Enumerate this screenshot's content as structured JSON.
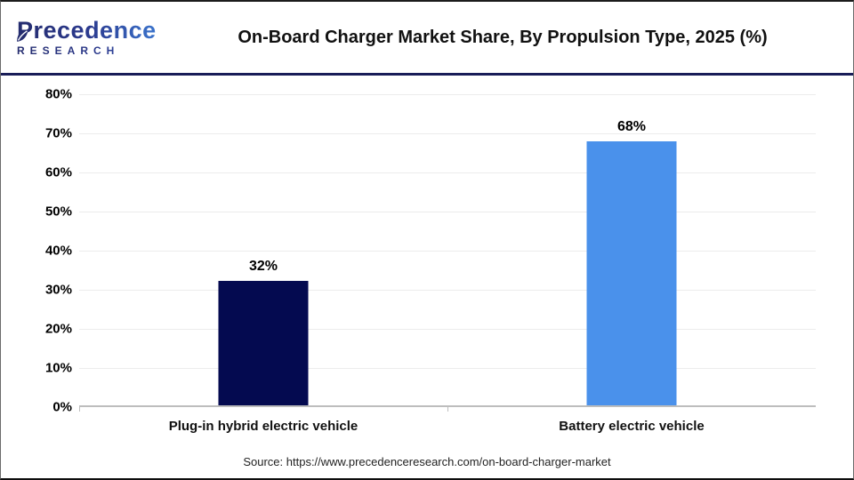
{
  "header": {
    "logo": {
      "name": "Precedence",
      "sub": "RESEARCH"
    },
    "title": "On-Board Charger Market Share, By Propulsion Type, 2025 (%)"
  },
  "chart_data": {
    "type": "bar",
    "title": "On-Board Charger Market Share, By Propulsion Type, 2025 (%)",
    "categories": [
      "Plug-in hybrid electric vehicle",
      "Battery electric vehicle"
    ],
    "values": [
      32,
      68
    ],
    "value_labels": [
      "32%",
      "68%"
    ],
    "bar_colors": [
      "#040a50",
      "#4a91eb"
    ],
    "xlabel": "",
    "ylabel": "",
    "ylim": [
      0,
      80
    ],
    "ytick_step": 10,
    "yticks": [
      "80%",
      "70%",
      "60%",
      "50%",
      "40%",
      "30%",
      "20%",
      "10%",
      "0%"
    ],
    "grid": true,
    "legend": false
  },
  "footer": {
    "source": "Source: https://www.precedenceresearch.com/on-board-charger-market"
  },
  "colors": {
    "navy_bar": "#040a50",
    "blue_bar": "#4a91eb",
    "divider": "#191d58",
    "gridline": "#ececec",
    "axis": "#bdbdbd",
    "logo_navy": "#242c6e",
    "logo_blue": "#3f86e0"
  }
}
